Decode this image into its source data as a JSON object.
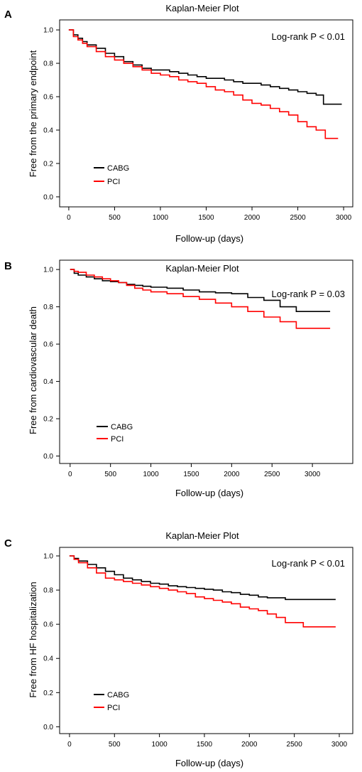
{
  "chart_data": [
    {
      "type": "line",
      "panel": "A",
      "title": "Kaplan-Meier Plot",
      "xlabel": "Follow-up (days)",
      "ylabel": "Free from the primary endpoint",
      "xlim": [
        -100,
        3100
      ],
      "ylim": [
        -0.06,
        1.06
      ],
      "xticks": [
        0,
        500,
        1000,
        1500,
        2000,
        2500,
        3000
      ],
      "yticks": [
        "0.0",
        "0.2",
        "0.4",
        "0.6",
        "0.8",
        "1.0"
      ],
      "annotation": "Log-rank P < 0.01",
      "legend_position": "bottom-left",
      "grid": false,
      "series": [
        {
          "name": "CABG",
          "color": "#000000",
          "x": [
            0,
            50,
            100,
            150,
            200,
            300,
            400,
            500,
            600,
            700,
            800,
            900,
            1000,
            1100,
            1200,
            1300,
            1400,
            1500,
            1600,
            1700,
            1800,
            1900,
            2000,
            2100,
            2200,
            2300,
            2400,
            2500,
            2600,
            2700,
            2780,
            2980
          ],
          "y": [
            1.0,
            0.97,
            0.95,
            0.93,
            0.91,
            0.89,
            0.86,
            0.84,
            0.81,
            0.79,
            0.77,
            0.76,
            0.76,
            0.75,
            0.74,
            0.73,
            0.72,
            0.71,
            0.71,
            0.7,
            0.69,
            0.68,
            0.68,
            0.67,
            0.66,
            0.65,
            0.64,
            0.63,
            0.62,
            0.61,
            0.555,
            0.555
          ]
        },
        {
          "name": "PCI",
          "color": "#ff0000",
          "x": [
            0,
            50,
            100,
            150,
            200,
            300,
            400,
            500,
            600,
            700,
            800,
            900,
            1000,
            1100,
            1200,
            1300,
            1400,
            1500,
            1600,
            1700,
            1800,
            1900,
            2000,
            2100,
            2200,
            2300,
            2400,
            2500,
            2600,
            2700,
            2800,
            2940
          ],
          "y": [
            1.0,
            0.96,
            0.94,
            0.92,
            0.9,
            0.87,
            0.84,
            0.82,
            0.8,
            0.78,
            0.76,
            0.74,
            0.73,
            0.72,
            0.7,
            0.69,
            0.68,
            0.66,
            0.64,
            0.63,
            0.61,
            0.58,
            0.56,
            0.55,
            0.53,
            0.51,
            0.49,
            0.45,
            0.42,
            0.4,
            0.35,
            0.35
          ]
        }
      ]
    },
    {
      "type": "line",
      "panel": "B",
      "title": "Kaplan-Meier Plot",
      "xlabel": "Follow-up (days)",
      "ylabel": "Free from cardiovascular death",
      "xlim": [
        -130,
        3500
      ],
      "ylim": [
        -0.04,
        1.05
      ],
      "xticks": [
        0,
        500,
        1000,
        1500,
        2000,
        2500,
        3000
      ],
      "yticks": [
        "0.0",
        "0.2",
        "0.4",
        "0.6",
        "0.8",
        "1.0"
      ],
      "annotation": "Log-rank P = 0.03",
      "legend_position": "bottom-left",
      "grid": false,
      "series": [
        {
          "name": "CABG",
          "color": "#000000",
          "x": [
            0,
            50,
            100,
            200,
            300,
            400,
            500,
            600,
            700,
            800,
            900,
            1000,
            1200,
            1400,
            1600,
            1800,
            2000,
            2200,
            2400,
            2600,
            2800,
            3000,
            3220
          ],
          "y": [
            1.0,
            0.98,
            0.97,
            0.96,
            0.95,
            0.94,
            0.935,
            0.93,
            0.92,
            0.915,
            0.91,
            0.905,
            0.9,
            0.89,
            0.88,
            0.875,
            0.87,
            0.85,
            0.835,
            0.8,
            0.775,
            0.775,
            0.775
          ]
        },
        {
          "name": "PCI",
          "color": "#ff0000",
          "x": [
            0,
            50,
            100,
            200,
            300,
            400,
            500,
            600,
            700,
            800,
            900,
            1000,
            1200,
            1400,
            1600,
            1800,
            2000,
            2200,
            2400,
            2600,
            2800,
            3000,
            3220
          ],
          "y": [
            1.0,
            0.99,
            0.985,
            0.97,
            0.96,
            0.95,
            0.94,
            0.93,
            0.915,
            0.9,
            0.89,
            0.88,
            0.87,
            0.855,
            0.84,
            0.82,
            0.8,
            0.775,
            0.745,
            0.72,
            0.685,
            0.685,
            0.685
          ]
        }
      ]
    },
    {
      "type": "line",
      "panel": "C",
      "title": "Kaplan-Meier Plot",
      "xlabel": "Follow-up (days)",
      "ylabel": "Free from HF hospitalization",
      "xlim": [
        -110,
        3150
      ],
      "ylim": [
        -0.04,
        1.05
      ],
      "xticks": [
        0,
        500,
        1000,
        1500,
        2000,
        2500,
        3000
      ],
      "yticks": [
        "0.0",
        "0.2",
        "0.4",
        "0.6",
        "0.8",
        "1.0"
      ],
      "annotation": "Log-rank P < 0.01",
      "legend_position": "bottom-left",
      "grid": false,
      "series": [
        {
          "name": "CABG",
          "color": "#000000",
          "x": [
            0,
            50,
            100,
            200,
            300,
            400,
            500,
            600,
            700,
            800,
            900,
            1000,
            1100,
            1200,
            1300,
            1400,
            1500,
            1600,
            1700,
            1800,
            1900,
            2000,
            2100,
            2200,
            2400,
            2600,
            2960
          ],
          "y": [
            1.0,
            0.985,
            0.97,
            0.95,
            0.93,
            0.91,
            0.89,
            0.87,
            0.86,
            0.85,
            0.84,
            0.835,
            0.825,
            0.82,
            0.815,
            0.81,
            0.805,
            0.8,
            0.79,
            0.785,
            0.775,
            0.77,
            0.76,
            0.755,
            0.745,
            0.745,
            0.745
          ]
        },
        {
          "name": "PCI",
          "color": "#ff0000",
          "x": [
            0,
            50,
            100,
            200,
            300,
            400,
            500,
            600,
            700,
            800,
            900,
            1000,
            1100,
            1200,
            1300,
            1400,
            1500,
            1600,
            1700,
            1800,
            1900,
            2000,
            2100,
            2200,
            2300,
            2400,
            2500,
            2600,
            2960
          ],
          "y": [
            1.0,
            0.98,
            0.96,
            0.93,
            0.9,
            0.87,
            0.86,
            0.85,
            0.84,
            0.83,
            0.82,
            0.81,
            0.8,
            0.79,
            0.78,
            0.76,
            0.75,
            0.74,
            0.73,
            0.72,
            0.7,
            0.69,
            0.68,
            0.66,
            0.64,
            0.61,
            0.61,
            0.585,
            0.585
          ]
        }
      ]
    }
  ]
}
